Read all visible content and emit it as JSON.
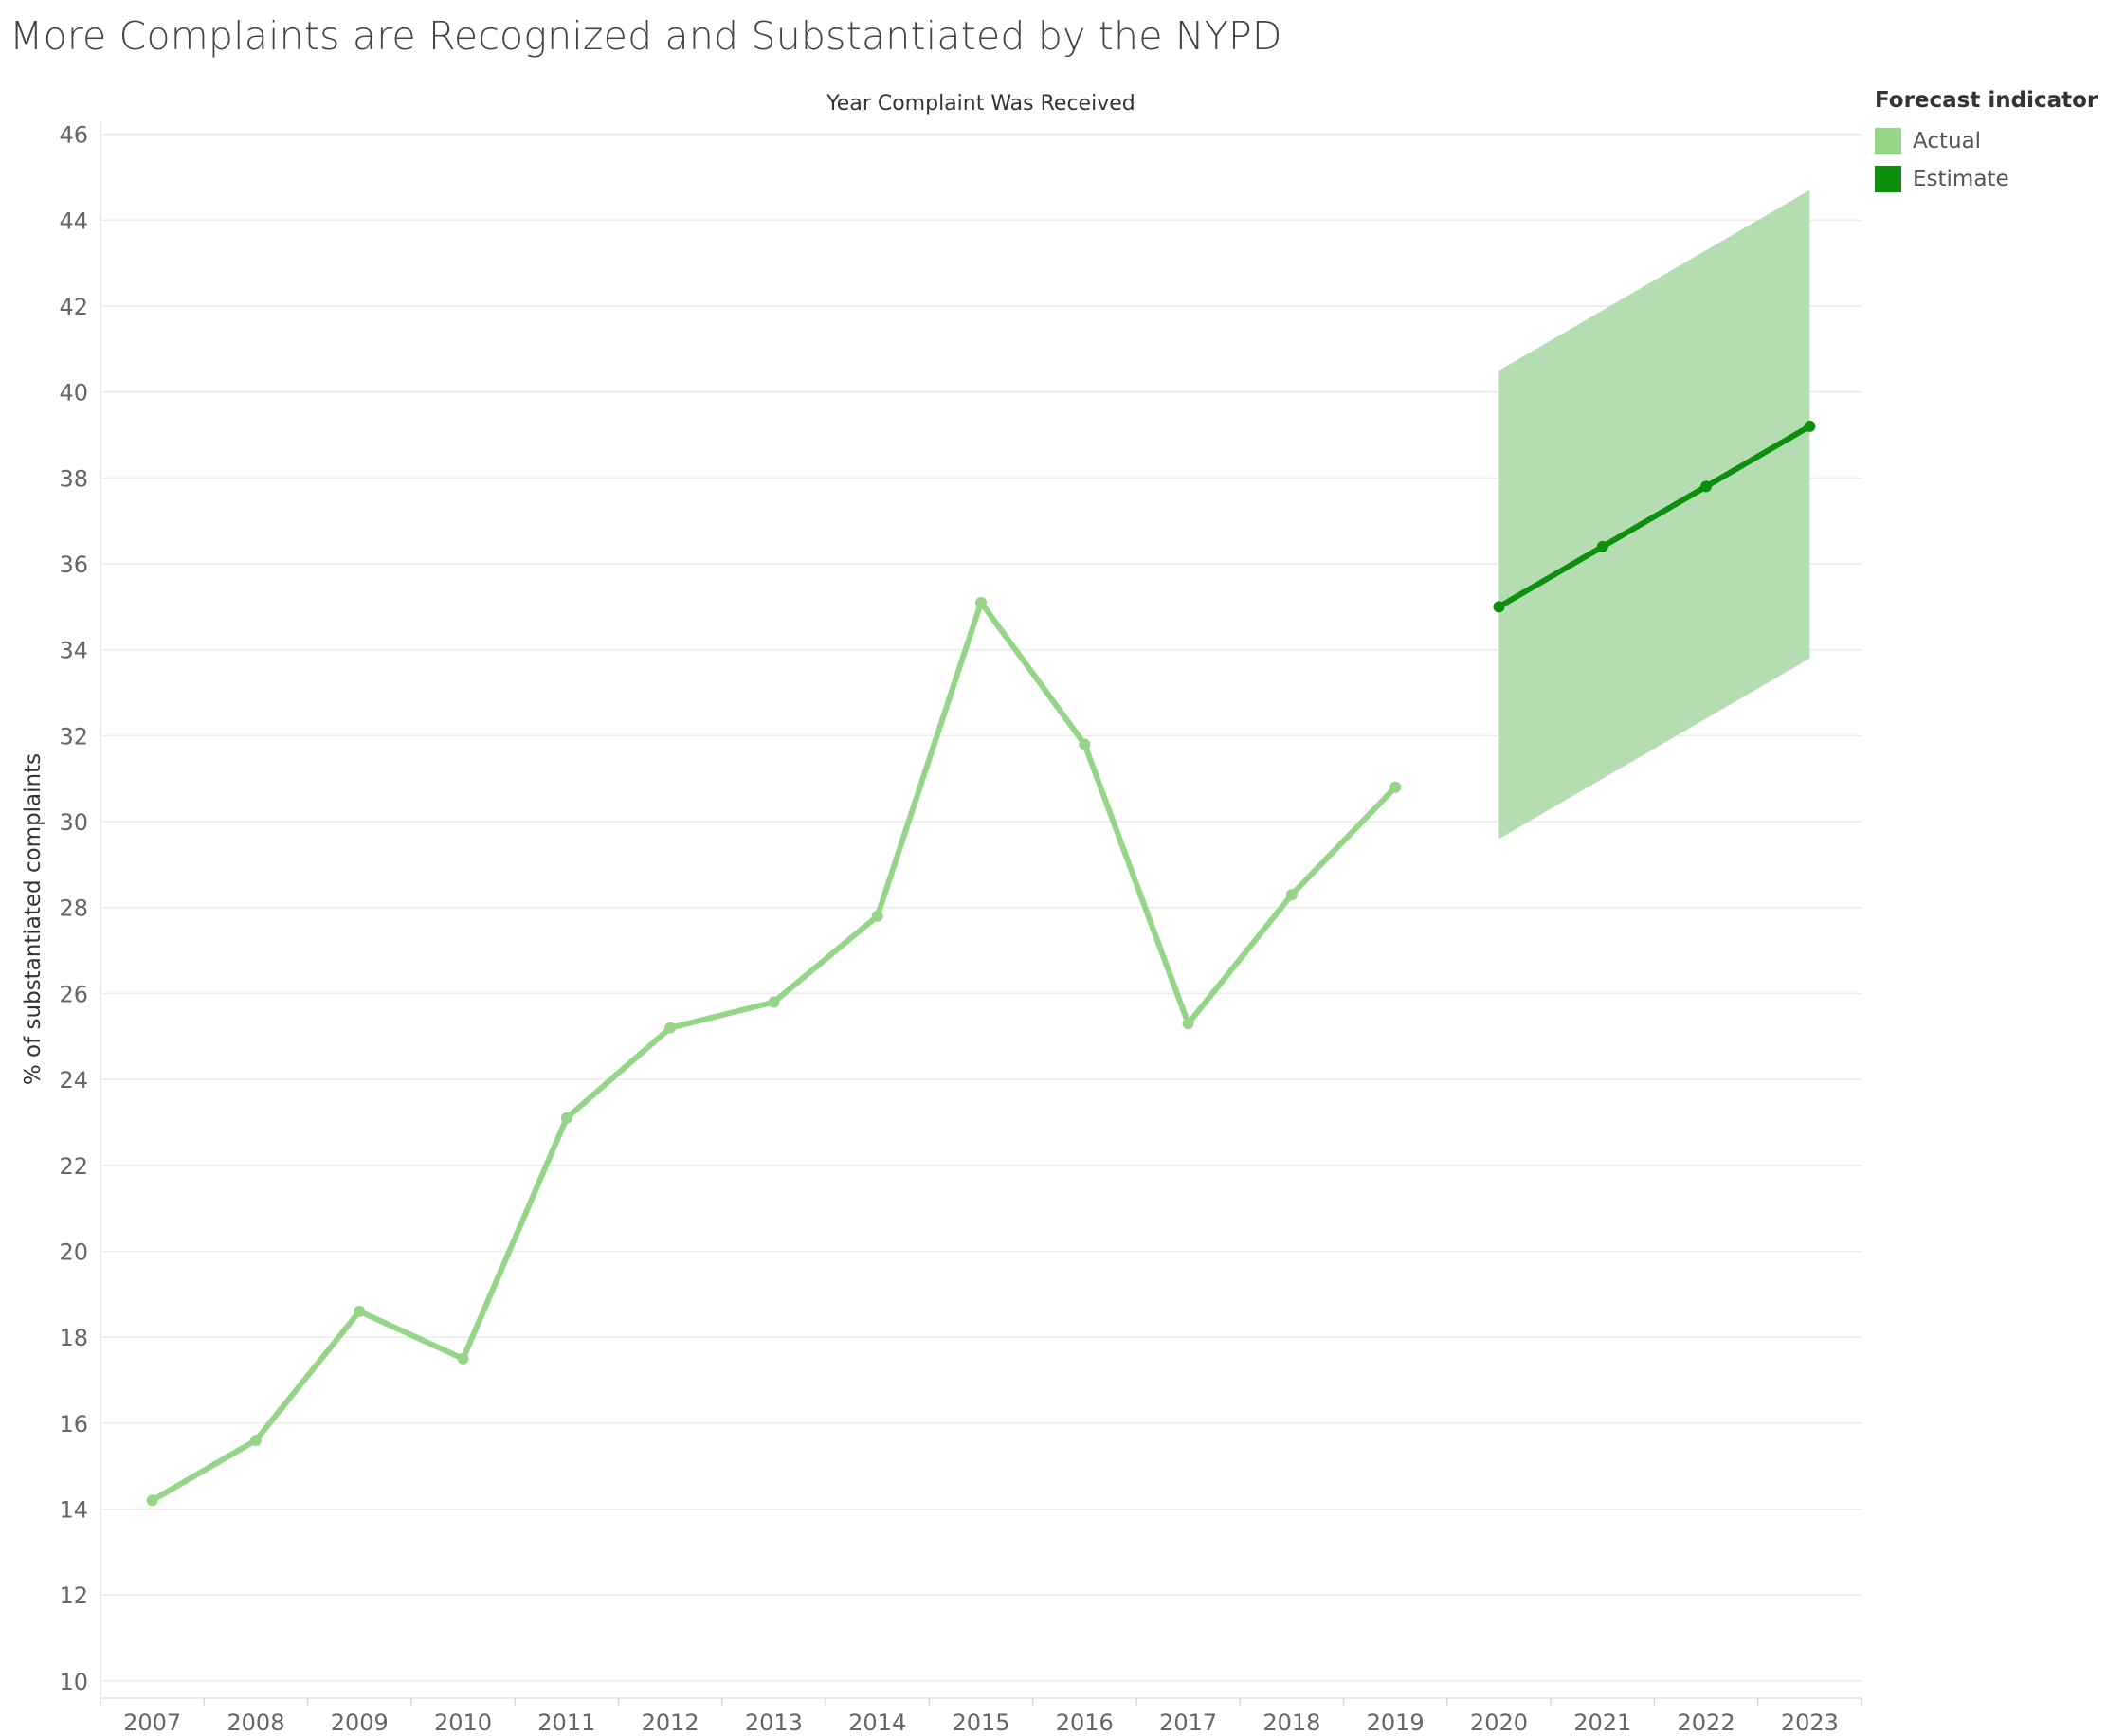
{
  "title": "More Complaints are Recognized and Substantiated by the NYPD",
  "legend": {
    "title": "Forecast indicator",
    "items": [
      {
        "label": "Actual",
        "color": "#94d587"
      },
      {
        "label": "Estimate",
        "color": "#0d8f0d"
      }
    ]
  },
  "chart_data": {
    "type": "line",
    "title": "More Complaints are Recognized and Substantiated by the NYPD",
    "xlabel": "Year Complaint Was Received",
    "ylabel": "% of substantiated complaints",
    "categories": [
      "2007",
      "2008",
      "2009",
      "2010",
      "2011",
      "2012",
      "2013",
      "2014",
      "2015",
      "2016",
      "2017",
      "2018",
      "2019",
      "2020",
      "2021",
      "2022",
      "2023"
    ],
    "yticks": [
      10,
      12,
      14,
      16,
      18,
      20,
      22,
      24,
      26,
      28,
      30,
      32,
      34,
      36,
      38,
      40,
      42,
      44,
      46
    ],
    "ylim": [
      9.6,
      46.3
    ],
    "grid": true,
    "legend_position": "top-right",
    "series": [
      {
        "name": "Actual",
        "color": "#94d587",
        "values": [
          14.2,
          15.6,
          18.6,
          17.5,
          23.1,
          25.2,
          25.8,
          27.8,
          35.1,
          31.8,
          25.3,
          28.3,
          30.8,
          null,
          null,
          null,
          null
        ]
      },
      {
        "name": "Estimate",
        "color": "#0d8f0d",
        "values": [
          null,
          null,
          null,
          null,
          null,
          null,
          null,
          null,
          null,
          null,
          null,
          null,
          null,
          35.0,
          36.4,
          37.8,
          39.2
        ]
      }
    ],
    "prediction_interval": {
      "color": "#b2ddb0",
      "x": [
        "2020",
        "2023"
      ],
      "upper": [
        40.5,
        44.7
      ],
      "lower": [
        29.6,
        33.8
      ]
    }
  }
}
